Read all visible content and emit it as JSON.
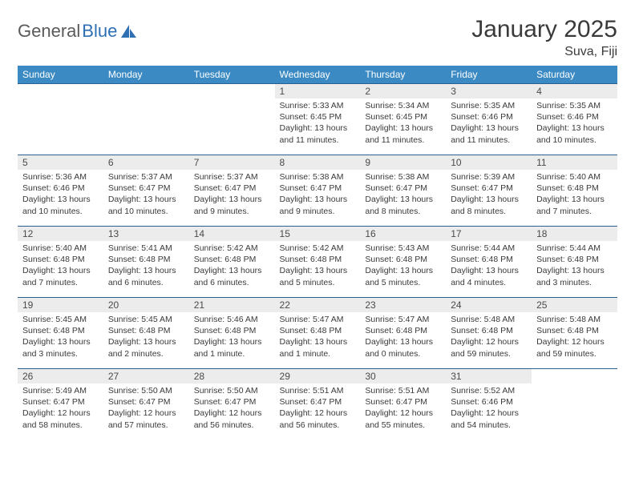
{
  "brand": {
    "part1": "General",
    "part2": "Blue"
  },
  "title": "January 2025",
  "location": "Suva, Fiji",
  "weekdays": [
    "Sunday",
    "Monday",
    "Tuesday",
    "Wednesday",
    "Thursday",
    "Friday",
    "Saturday"
  ],
  "colors": {
    "header_bg": "#3b8ac4",
    "header_text": "#ffffff",
    "cell_border": "#2b5f8e",
    "daynum_bg": "#ececec",
    "text": "#3a3a3a"
  },
  "typography": {
    "title_fontsize": 30,
    "location_fontsize": 16,
    "weekday_fontsize": 12,
    "daynum_fontsize": 12,
    "detail_fontsize": 10.5
  },
  "weeks": [
    [
      null,
      null,
      null,
      {
        "n": "1",
        "sr": "5:33 AM",
        "ss": "6:45 PM",
        "dl": "13 hours and 11 minutes."
      },
      {
        "n": "2",
        "sr": "5:34 AM",
        "ss": "6:45 PM",
        "dl": "13 hours and 11 minutes."
      },
      {
        "n": "3",
        "sr": "5:35 AM",
        "ss": "6:46 PM",
        "dl": "13 hours and 11 minutes."
      },
      {
        "n": "4",
        "sr": "5:35 AM",
        "ss": "6:46 PM",
        "dl": "13 hours and 10 minutes."
      }
    ],
    [
      {
        "n": "5",
        "sr": "5:36 AM",
        "ss": "6:46 PM",
        "dl": "13 hours and 10 minutes."
      },
      {
        "n": "6",
        "sr": "5:37 AM",
        "ss": "6:47 PM",
        "dl": "13 hours and 10 minutes."
      },
      {
        "n": "7",
        "sr": "5:37 AM",
        "ss": "6:47 PM",
        "dl": "13 hours and 9 minutes."
      },
      {
        "n": "8",
        "sr": "5:38 AM",
        "ss": "6:47 PM",
        "dl": "13 hours and 9 minutes."
      },
      {
        "n": "9",
        "sr": "5:38 AM",
        "ss": "6:47 PM",
        "dl": "13 hours and 8 minutes."
      },
      {
        "n": "10",
        "sr": "5:39 AM",
        "ss": "6:47 PM",
        "dl": "13 hours and 8 minutes."
      },
      {
        "n": "11",
        "sr": "5:40 AM",
        "ss": "6:48 PM",
        "dl": "13 hours and 7 minutes."
      }
    ],
    [
      {
        "n": "12",
        "sr": "5:40 AM",
        "ss": "6:48 PM",
        "dl": "13 hours and 7 minutes."
      },
      {
        "n": "13",
        "sr": "5:41 AM",
        "ss": "6:48 PM",
        "dl": "13 hours and 6 minutes."
      },
      {
        "n": "14",
        "sr": "5:42 AM",
        "ss": "6:48 PM",
        "dl": "13 hours and 6 minutes."
      },
      {
        "n": "15",
        "sr": "5:42 AM",
        "ss": "6:48 PM",
        "dl": "13 hours and 5 minutes."
      },
      {
        "n": "16",
        "sr": "5:43 AM",
        "ss": "6:48 PM",
        "dl": "13 hours and 5 minutes."
      },
      {
        "n": "17",
        "sr": "5:44 AM",
        "ss": "6:48 PM",
        "dl": "13 hours and 4 minutes."
      },
      {
        "n": "18",
        "sr": "5:44 AM",
        "ss": "6:48 PM",
        "dl": "13 hours and 3 minutes."
      }
    ],
    [
      {
        "n": "19",
        "sr": "5:45 AM",
        "ss": "6:48 PM",
        "dl": "13 hours and 3 minutes."
      },
      {
        "n": "20",
        "sr": "5:45 AM",
        "ss": "6:48 PM",
        "dl": "13 hours and 2 minutes."
      },
      {
        "n": "21",
        "sr": "5:46 AM",
        "ss": "6:48 PM",
        "dl": "13 hours and 1 minute."
      },
      {
        "n": "22",
        "sr": "5:47 AM",
        "ss": "6:48 PM",
        "dl": "13 hours and 1 minute."
      },
      {
        "n": "23",
        "sr": "5:47 AM",
        "ss": "6:48 PM",
        "dl": "13 hours and 0 minutes."
      },
      {
        "n": "24",
        "sr": "5:48 AM",
        "ss": "6:48 PM",
        "dl": "12 hours and 59 minutes."
      },
      {
        "n": "25",
        "sr": "5:48 AM",
        "ss": "6:48 PM",
        "dl": "12 hours and 59 minutes."
      }
    ],
    [
      {
        "n": "26",
        "sr": "5:49 AM",
        "ss": "6:47 PM",
        "dl": "12 hours and 58 minutes."
      },
      {
        "n": "27",
        "sr": "5:50 AM",
        "ss": "6:47 PM",
        "dl": "12 hours and 57 minutes."
      },
      {
        "n": "28",
        "sr": "5:50 AM",
        "ss": "6:47 PM",
        "dl": "12 hours and 56 minutes."
      },
      {
        "n": "29",
        "sr": "5:51 AM",
        "ss": "6:47 PM",
        "dl": "12 hours and 56 minutes."
      },
      {
        "n": "30",
        "sr": "5:51 AM",
        "ss": "6:47 PM",
        "dl": "12 hours and 55 minutes."
      },
      {
        "n": "31",
        "sr": "5:52 AM",
        "ss": "6:46 PM",
        "dl": "12 hours and 54 minutes."
      },
      null
    ]
  ],
  "labels": {
    "sunrise": "Sunrise:",
    "sunset": "Sunset:",
    "daylight": "Daylight:"
  }
}
